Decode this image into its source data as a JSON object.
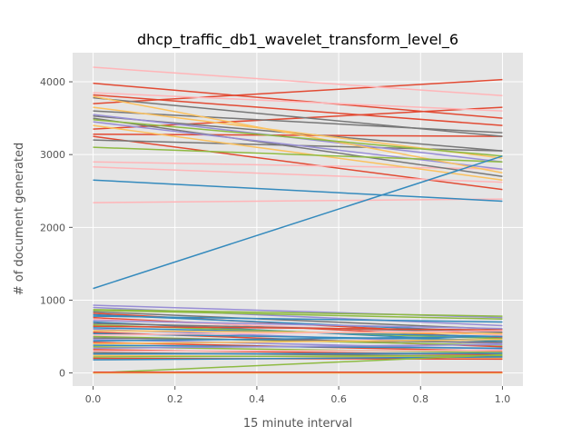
{
  "chart_data": {
    "type": "line",
    "title": "dhcp_traffic_db1_wavelet_transform_level_6",
    "xlabel": "15 minute interval",
    "ylabel": "# of document generated",
    "xlim": [
      -0.05,
      1.05
    ],
    "ylim": [
      -180,
      4400
    ],
    "x_ticks": [
      0.0,
      0.2,
      0.4,
      0.6,
      0.8,
      1.0
    ],
    "x_tick_labels": [
      "0.0",
      "0.2",
      "0.4",
      "0.6",
      "0.8",
      "1.0"
    ],
    "y_ticks": [
      0,
      1000,
      2000,
      3000,
      4000
    ],
    "y_tick_labels": [
      "0",
      "1000",
      "2000",
      "3000",
      "4000"
    ],
    "grid": true,
    "legend": "none",
    "background_color": "#e5e5e5",
    "grid_color": "#ffffff",
    "palette": [
      "#E24A33",
      "#348ABD",
      "#988ED5",
      "#777777",
      "#FBC15E",
      "#8EBA42",
      "#FFB5B8"
    ],
    "x": [
      0,
      1
    ],
    "series": [
      {
        "values": [
          3980,
          3500
        ],
        "color": "#E24A33"
      },
      {
        "values": [
          3700,
          4030
        ],
        "color": "#E24A33"
      },
      {
        "values": [
          3820,
          3400
        ],
        "color": "#E24A33"
      },
      {
        "values": [
          3280,
          3250
        ],
        "color": "#E24A33"
      },
      {
        "values": [
          3350,
          3650
        ],
        "color": "#E24A33"
      },
      {
        "values": [
          3250,
          2520
        ],
        "color": "#E24A33"
      },
      {
        "values": [
          4200,
          3810
        ],
        "color": "#FFB5B8"
      },
      {
        "values": [
          3850,
          3600
        ],
        "color": "#FFB5B8"
      },
      {
        "values": [
          2900,
          2800
        ],
        "color": "#FFB5B8"
      },
      {
        "values": [
          2830,
          2620
        ],
        "color": "#FFB5B8"
      },
      {
        "values": [
          2340,
          2390
        ],
        "color": "#FFB5B8"
      },
      {
        "values": [
          3780,
          3250
        ],
        "color": "#777777"
      },
      {
        "values": [
          3530,
          3050
        ],
        "color": "#777777"
      },
      {
        "values": [
          3200,
          3050
        ],
        "color": "#777777"
      },
      {
        "values": [
          3600,
          3300
        ],
        "color": "#777777"
      },
      {
        "values": [
          3500,
          2700
        ],
        "color": "#777777"
      },
      {
        "values": [
          3550,
          2900
        ],
        "color": "#988ED5"
      },
      {
        "values": [
          3450,
          2800
        ],
        "color": "#988ED5"
      },
      {
        "values": [
          3800,
          2750
        ],
        "color": "#FBC15E"
      },
      {
        "values": [
          3650,
          2950
        ],
        "color": "#FBC15E"
      },
      {
        "values": [
          3400,
          2650
        ],
        "color": "#FBC15E"
      },
      {
        "values": [
          3100,
          2900
        ],
        "color": "#8EBA42"
      },
      {
        "values": [
          3480,
          2980
        ],
        "color": "#8EBA42"
      },
      {
        "values": [
          2650,
          2360
        ],
        "color": "#348ABD"
      },
      {
        "values": [
          1160,
          2980
        ],
        "color": "#348ABD"
      },
      {
        "values": [
          930,
          760
        ],
        "color": "#988ED5"
      },
      {
        "values": [
          900,
          650
        ],
        "color": "#988ED5"
      },
      {
        "values": [
          870,
          780
        ],
        "color": "#8EBA42"
      },
      {
        "values": [
          860,
          740
        ],
        "color": "#8EBA42"
      },
      {
        "values": [
          840,
          600
        ],
        "color": "#777777"
      },
      {
        "values": [
          820,
          520
        ],
        "color": "#E24A33"
      },
      {
        "values": [
          800,
          560
        ],
        "color": "#348ABD"
      },
      {
        "values": [
          780,
          700
        ],
        "color": "#348ABD"
      },
      {
        "values": [
          760,
          480
        ],
        "color": "#E24A33"
      },
      {
        "values": [
          740,
          520
        ],
        "color": "#FFB5B8"
      },
      {
        "values": [
          720,
          610
        ],
        "color": "#988ED5"
      },
      {
        "values": [
          700,
          430
        ],
        "color": "#348ABD"
      },
      {
        "values": [
          680,
          560
        ],
        "color": "#777777"
      },
      {
        "values": [
          660,
          470
        ],
        "color": "#8EBA42"
      },
      {
        "values": [
          640,
          590
        ],
        "color": "#E24A33"
      },
      {
        "values": [
          620,
          500
        ],
        "color": "#348ABD"
      },
      {
        "values": [
          600,
          400
        ],
        "color": "#988ED5"
      },
      {
        "values": [
          580,
          540
        ],
        "color": "#FBC15E"
      },
      {
        "values": [
          560,
          360
        ],
        "color": "#E24A33"
      },
      {
        "values": [
          540,
          450
        ],
        "color": "#348ABD"
      },
      {
        "values": [
          520,
          580
        ],
        "color": "#FFB5B8"
      },
      {
        "values": [
          500,
          380
        ],
        "color": "#8EBA42"
      },
      {
        "values": [
          480,
          420
        ],
        "color": "#777777"
      },
      {
        "values": [
          460,
          330
        ],
        "color": "#988ED5"
      },
      {
        "values": [
          440,
          500
        ],
        "color": "#348ABD"
      },
      {
        "values": [
          420,
          300
        ],
        "color": "#E24A33"
      },
      {
        "values": [
          400,
          460
        ],
        "color": "#FBC15E"
      },
      {
        "values": [
          380,
          340
        ],
        "color": "#348ABD"
      },
      {
        "values": [
          360,
          280
        ],
        "color": "#8EBA42"
      },
      {
        "values": [
          340,
          390
        ],
        "color": "#988ED5"
      },
      {
        "values": [
          320,
          250
        ],
        "color": "#E24A33"
      },
      {
        "values": [
          300,
          310
        ],
        "color": "#FFB5B8"
      },
      {
        "values": [
          280,
          230
        ],
        "color": "#777777"
      },
      {
        "values": [
          260,
          270
        ],
        "color": "#348ABD"
      },
      {
        "values": [
          240,
          210
        ],
        "color": "#FBC15E"
      },
      {
        "values": [
          220,
          240
        ],
        "color": "#8EBA42"
      },
      {
        "values": [
          200,
          190
        ],
        "color": "#E24A33"
      },
      {
        "values": [
          180,
          220
        ],
        "color": "#348ABD"
      },
      {
        "values": [
          0,
          250
        ],
        "color": "#8EBA42"
      },
      {
        "values": [
          0,
          0
        ],
        "color": "#FBC15E"
      },
      {
        "values": [
          10,
          10
        ],
        "color": "#E24A33"
      }
    ]
  }
}
